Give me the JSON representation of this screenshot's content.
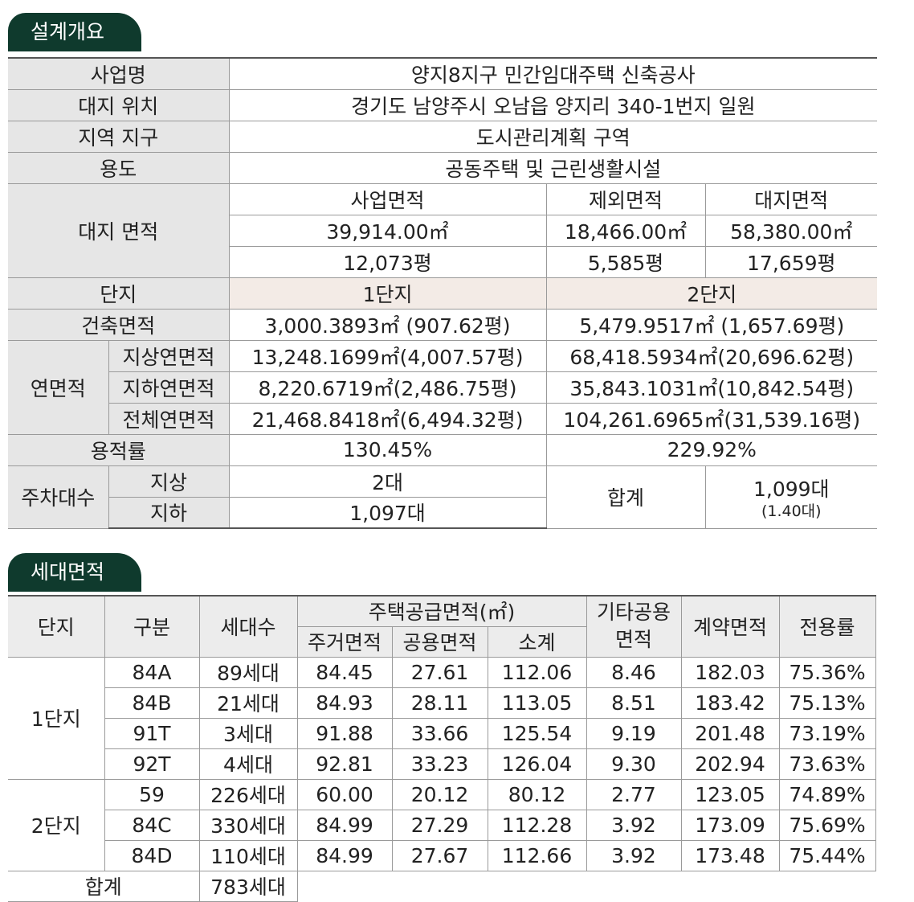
{
  "design": {
    "title": "설계개요",
    "project_name": {
      "label": "사업명",
      "value": "양지8지구 민간임대주택 신축공사"
    },
    "site_location": {
      "label": "대지 위치",
      "value": "경기도 남양주시 오남읍 양지리 340-1번지 일원"
    },
    "zone": {
      "label": "지역 지구",
      "value": "도시관리계획 구역"
    },
    "use": {
      "label": "용도",
      "value": "공동주택 및 근린생활시설"
    },
    "site_area": {
      "label": "대지 면적",
      "headers": [
        "사업면적",
        "제외면적",
        "대지면적"
      ],
      "sqm": [
        "39,914.00㎡",
        "18,466.00㎡",
        "58,380.00㎡"
      ],
      "pyeong": [
        "12,073평",
        "5,585평",
        "17,659평"
      ]
    },
    "complex": {
      "label": "단지",
      "values": [
        "1단지",
        "2단지"
      ]
    },
    "building_area": {
      "label": "건축면적",
      "values": [
        "3,000.3893㎡ (907.62평)",
        "5,479.9517㎡ (1,657.69평)"
      ]
    },
    "floor_area": {
      "label": "연면적",
      "rows": [
        {
          "label": "지상연면적",
          "values": [
            "13,248.1699㎡(4,007.57평)",
            "68,418.5934㎡(20,696.62평)"
          ]
        },
        {
          "label": "지하연면적",
          "values": [
            "8,220.6719㎡(2,486.75평)",
            "35,843.1031㎡(10,842.54평)"
          ]
        },
        {
          "label": "전체연면적",
          "values": [
            "21,468.8418㎡(6,494.32평)",
            "104,261.6965㎡(31,539.16평)"
          ]
        }
      ]
    },
    "far": {
      "label": "용적률",
      "values": [
        "130.45%",
        "229.92%"
      ]
    },
    "parking": {
      "label": "주차대수",
      "above": {
        "label": "지상",
        "value": "2대"
      },
      "below": {
        "label": "지하",
        "value": "1,097대"
      },
      "total": {
        "label": "합계",
        "value": "1,099대",
        "note": "(1.40대)"
      }
    }
  },
  "units": {
    "title": "세대면적",
    "headers": {
      "complex": "단지",
      "type": "구분",
      "households": "세대수",
      "supply": "주택공급면적(㎡)",
      "residential": "주거면적",
      "common": "공용면적",
      "subtotal": "소계",
      "other": "기타공용\n면적",
      "contract": "계약면적",
      "ratio": "전용률"
    },
    "groups": [
      {
        "name": "1단지",
        "rows": [
          [
            "84A",
            "89세대",
            "84.45",
            "27.61",
            "112.06",
            "8.46",
            "182.03",
            "75.36%"
          ],
          [
            "84B",
            "21세대",
            "84.93",
            "28.11",
            "113.05",
            "8.51",
            "183.42",
            "75.13%"
          ],
          [
            "91T",
            "3세대",
            "91.88",
            "33.66",
            "125.54",
            "9.19",
            "201.48",
            "73.19%"
          ],
          [
            "92T",
            "4세대",
            "92.81",
            "33.23",
            "126.04",
            "9.30",
            "202.94",
            "73.63%"
          ]
        ]
      },
      {
        "name": "2단지",
        "rows": [
          [
            "59",
            "226세대",
            "60.00",
            "20.12",
            "80.12",
            "2.77",
            "123.05",
            "74.89%"
          ],
          [
            "84C",
            "330세대",
            "84.99",
            "27.29",
            "112.28",
            "3.92",
            "173.09",
            "75.69%"
          ],
          [
            "84D",
            "110세대",
            "84.99",
            "27.67",
            "112.66",
            "3.92",
            "173.48",
            "75.44%"
          ]
        ]
      }
    ],
    "total": {
      "label": "합계",
      "value": "783세대"
    }
  }
}
